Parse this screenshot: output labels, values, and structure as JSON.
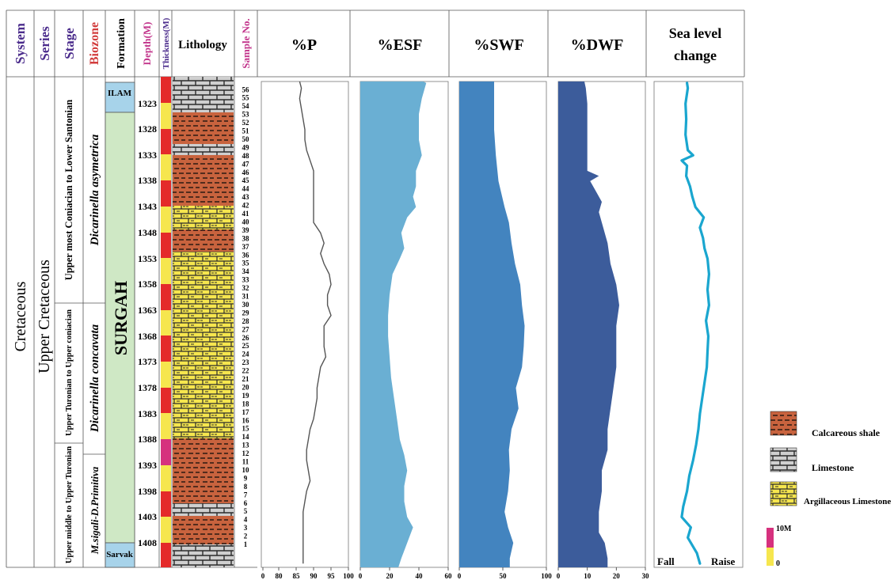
{
  "headers": {
    "system": "System",
    "series": "Series",
    "stage": "Stage",
    "biozone": "Biozone",
    "formation": "Formation",
    "depth": "Depth(M)",
    "thickness": "Thickness(M)",
    "lithology": "Lithology",
    "sample": "Sample No.",
    "p": "%P",
    "esf": "%ESF",
    "swf": "%SWF",
    "dwf": "%DWF",
    "sea1": "Sea level",
    "sea2": "change"
  },
  "system": "Cretaceous",
  "series": "Upper Cretaceous",
  "stages": [
    "Upper most Coniacian to Lower Santonian",
    "Upper Turonian to Upper coniacian",
    "Upper middle to Upper Turonian"
  ],
  "biozones": [
    "Dicarinella asymetrica",
    "Dicarinella concavata",
    "M.sigali-D.Primitiva"
  ],
  "formations": [
    "ILAM",
    "SURGAH",
    "Sarvak"
  ],
  "depths": [
    "1323",
    "1328",
    "1333",
    "1338",
    "1343",
    "1348",
    "1353",
    "1358",
    "1363",
    "1368",
    "1373",
    "1378",
    "1383",
    "1388",
    "1393",
    "1398",
    "1403",
    "1408"
  ],
  "samples": [
    "1",
    "2",
    "3",
    "4",
    "5",
    "6",
    "7",
    "8",
    "9",
    "10",
    "11",
    "12",
    "13",
    "14",
    "15",
    "16",
    "17",
    "18",
    "19",
    "20",
    "21",
    "22",
    "23",
    "24",
    "25",
    "26",
    "27",
    "28",
    "29",
    "30",
    "31",
    "32",
    "33",
    "34",
    "35",
    "36",
    "37",
    "38",
    "39",
    "40",
    "41",
    "42",
    "43",
    "44",
    "45",
    "46",
    "47",
    "48",
    "49",
    "50",
    "51",
    "52",
    "53",
    "54",
    "55",
    "56"
  ],
  "sea_labels": {
    "fall": "Fall",
    "raise": "Raise"
  },
  "legend": {
    "items": [
      "Calcareous shale",
      "Limestone",
      "Argillaceous Limestone"
    ],
    "scale_top": "10M",
    "scale_bottom": "0"
  },
  "colors": {
    "esf": "#6aafd3",
    "swf": "#4384bf",
    "dwf": "#3c5c9b",
    "sea": "#1aa6cf",
    "p_line": "#555555",
    "formation": "#cfe8c5",
    "ilam": "#a7d3ea"
  },
  "chart_data": [
    {
      "type": "area",
      "name_key": "p",
      "axis_ticks": [
        "0",
        "80",
        "85",
        "90",
        "95",
        "100"
      ],
      "xlim": [
        75,
        100
      ],
      "x_is_depth_axis": true,
      "depth": [
        1318.5,
        1320,
        1322,
        1324,
        1326,
        1328,
        1330,
        1332,
        1334,
        1336,
        1338,
        1340,
        1342,
        1344,
        1346,
        1348,
        1350,
        1352,
        1354,
        1356,
        1358,
        1360,
        1362,
        1364,
        1366,
        1368,
        1370,
        1372,
        1374,
        1376,
        1378,
        1380,
        1382,
        1384,
        1386,
        1388,
        1390,
        1392,
        1394,
        1396,
        1398,
        1400,
        1402,
        1404,
        1406,
        1408,
        1410,
        1412
      ],
      "values": [
        86,
        86.5,
        86,
        86.5,
        87,
        87.5,
        87.5,
        88,
        89,
        90,
        90,
        90,
        90,
        90,
        90,
        92,
        93,
        92,
        93,
        94.5,
        95,
        94,
        94,
        95,
        93,
        93,
        93,
        93.5,
        92,
        91.5,
        91,
        91,
        90.5,
        90,
        89,
        88.5,
        88,
        88,
        88.5,
        89,
        88,
        87.5,
        87,
        87,
        87,
        87,
        87,
        87
      ]
    },
    {
      "type": "area",
      "name_key": "esf",
      "axis_ticks": [
        "0",
        "20",
        "40",
        "60"
      ],
      "xlim": [
        0,
        60
      ],
      "depth": [
        1318.5,
        1319,
        1322,
        1325,
        1327,
        1330,
        1333,
        1336,
        1339,
        1341,
        1343,
        1345,
        1348,
        1351,
        1353,
        1356,
        1360,
        1364,
        1368,
        1372,
        1376,
        1380,
        1384,
        1388,
        1391,
        1394,
        1397,
        1400,
        1403,
        1405,
        1408,
        1411,
        1413
      ],
      "values": [
        43,
        45,
        42,
        40,
        40,
        40,
        42,
        38,
        38,
        36,
        38,
        32,
        28,
        30,
        27,
        22,
        20,
        19,
        19,
        20,
        21,
        23,
        25,
        27,
        30,
        32,
        30,
        30,
        32,
        36,
        32,
        28,
        26
      ]
    },
    {
      "type": "area",
      "name_key": "swf",
      "axis_ticks": [
        "0",
        "50",
        "100"
      ],
      "xlim": [
        0,
        100
      ],
      "depth": [
        1318.5,
        1328,
        1333,
        1338,
        1343,
        1346,
        1350,
        1354,
        1358,
        1362,
        1366,
        1370,
        1374,
        1378,
        1382,
        1386,
        1390,
        1394,
        1398,
        1402,
        1405,
        1408,
        1411,
        1413
      ],
      "values": [
        40,
        40,
        42,
        45,
        52,
        57,
        60,
        64,
        70,
        72,
        75,
        74,
        72,
        65,
        68,
        60,
        57,
        58,
        56,
        52,
        56,
        62,
        58,
        58
      ]
    },
    {
      "type": "area",
      "name_key": "dwf",
      "axis_ticks": [
        "0",
        "10",
        "20",
        "30"
      ],
      "xlim": [
        0,
        30
      ],
      "depth": [
        1318.5,
        1320,
        1323,
        1326,
        1330,
        1334,
        1336,
        1337,
        1338,
        1340,
        1342,
        1344,
        1346,
        1350,
        1354,
        1358,
        1362,
        1366,
        1370,
        1374,
        1378,
        1382,
        1386,
        1390,
        1394,
        1398,
        1402,
        1406,
        1408,
        1411,
        1413
      ],
      "values": [
        9,
        9.5,
        10,
        10,
        10,
        10,
        10,
        14,
        11,
        13,
        15,
        14,
        15,
        17,
        18,
        20,
        21,
        20,
        20,
        20,
        19,
        18,
        17,
        17,
        15,
        15,
        14,
        14,
        16,
        17,
        17
      ]
    },
    {
      "type": "line",
      "name_key": "sea",
      "depth": [
        1319,
        1320,
        1323,
        1326,
        1329,
        1332,
        1333,
        1334,
        1335,
        1337,
        1339,
        1341,
        1343,
        1345,
        1347,
        1349,
        1351,
        1353,
        1356,
        1359,
        1362,
        1365,
        1368,
        1371,
        1374,
        1377,
        1380,
        1383,
        1386,
        1389,
        1392,
        1395,
        1398,
        1401,
        1403,
        1405,
        1407,
        1410,
        1412
      ],
      "values": [
        0.35,
        0.36,
        0.33,
        0.34,
        0.33,
        0.36,
        0.43,
        0.28,
        0.35,
        0.34,
        0.39,
        0.42,
        0.46,
        0.57,
        0.52,
        0.56,
        0.58,
        0.62,
        0.64,
        0.62,
        0.64,
        0.6,
        0.63,
        0.62,
        0.61,
        0.58,
        0.55,
        0.52,
        0.5,
        0.47,
        0.43,
        0.38,
        0.35,
        0.3,
        0.28,
        0.4,
        0.36,
        0.48,
        0.52
      ]
    }
  ]
}
